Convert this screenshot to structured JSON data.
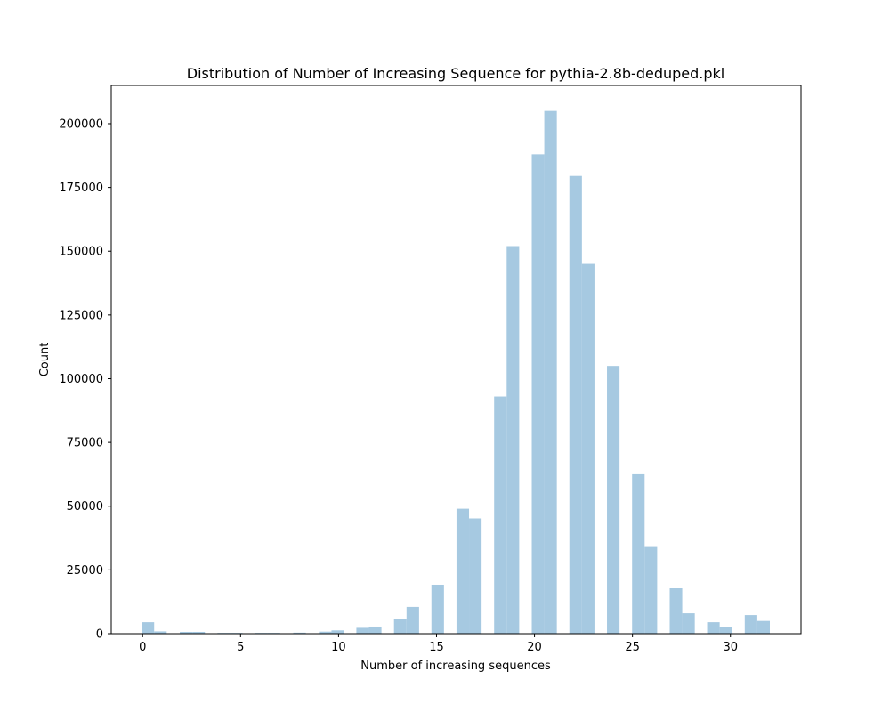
{
  "chart_data": {
    "type": "bar",
    "title": "Distribution of Number of  Increasing Sequence for pythia-2.8b-deduped.pkl",
    "xlabel": "Number of increasing sequences",
    "ylabel": "Count",
    "xlim": [
      -1.6,
      33.6
    ],
    "ylim": [
      0,
      215000
    ],
    "xticks": [
      0,
      5,
      10,
      15,
      20,
      25,
      30
    ],
    "yticks": [
      0,
      25000,
      50000,
      75000,
      100000,
      125000,
      150000,
      175000,
      200000
    ],
    "bar_color": "#a6c9e1",
    "grid": false,
    "legend": "none",
    "bars": [
      {
        "x0": -0.05,
        "x1": 0.59,
        "value": 4500
      },
      {
        "x0": 0.59,
        "x1": 1.23,
        "value": 900
      },
      {
        "x0": 1.9,
        "x1": 2.54,
        "value": 700
      },
      {
        "x0": 2.54,
        "x1": 3.18,
        "value": 700
      },
      {
        "x0": 3.82,
        "x1": 4.46,
        "value": 300
      },
      {
        "x0": 4.46,
        "x1": 5.1,
        "value": 300
      },
      {
        "x0": 5.74,
        "x1": 6.38,
        "value": 300
      },
      {
        "x0": 6.38,
        "x1": 7.02,
        "value": 300
      },
      {
        "x0": 7.69,
        "x1": 8.33,
        "value": 400
      },
      {
        "x0": 9.0,
        "x1": 9.64,
        "value": 800
      },
      {
        "x0": 9.64,
        "x1": 10.28,
        "value": 1300
      },
      {
        "x0": 10.91,
        "x1": 11.55,
        "value": 2300
      },
      {
        "x0": 11.55,
        "x1": 12.19,
        "value": 2800
      },
      {
        "x0": 12.83,
        "x1": 13.47,
        "value": 5700
      },
      {
        "x0": 13.47,
        "x1": 14.11,
        "value": 10500
      },
      {
        "x0": 14.74,
        "x1": 15.38,
        "value": 19200
      },
      {
        "x0": 16.02,
        "x1": 16.66,
        "value": 49000
      },
      {
        "x0": 16.66,
        "x1": 17.3,
        "value": 45200
      },
      {
        "x0": 17.94,
        "x1": 18.58,
        "value": 93000
      },
      {
        "x0": 18.58,
        "x1": 19.22,
        "value": 152000
      },
      {
        "x0": 19.86,
        "x1": 20.5,
        "value": 188000
      },
      {
        "x0": 20.5,
        "x1": 21.14,
        "value": 205000
      },
      {
        "x0": 21.78,
        "x1": 22.42,
        "value": 179500
      },
      {
        "x0": 22.42,
        "x1": 23.06,
        "value": 145000
      },
      {
        "x0": 23.7,
        "x1": 24.34,
        "value": 105000
      },
      {
        "x0": 24.98,
        "x1": 25.62,
        "value": 62500
      },
      {
        "x0": 25.62,
        "x1": 26.26,
        "value": 34000
      },
      {
        "x0": 26.9,
        "x1": 27.54,
        "value": 17800
      },
      {
        "x0": 27.54,
        "x1": 28.18,
        "value": 8000
      },
      {
        "x0": 28.81,
        "x1": 29.45,
        "value": 4500
      },
      {
        "x0": 29.45,
        "x1": 30.09,
        "value": 2700
      },
      {
        "x0": 30.73,
        "x1": 31.37,
        "value": 7300
      },
      {
        "x0": 31.37,
        "x1": 32.01,
        "value": 5000
      }
    ]
  }
}
